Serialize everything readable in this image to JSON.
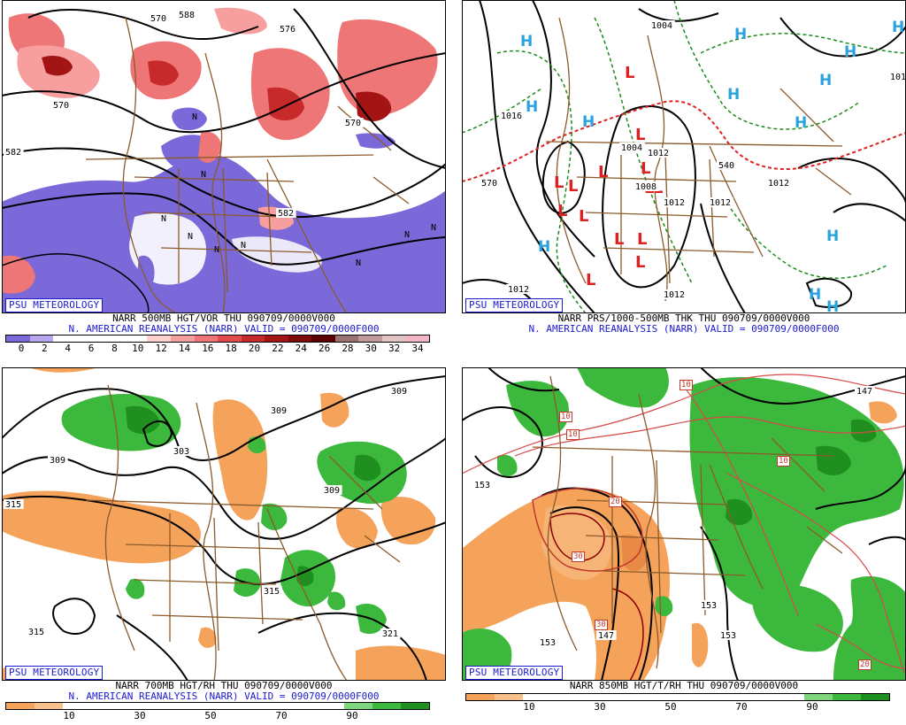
{
  "badge_text": "PSU METEOROLOGY",
  "panels": [
    {
      "id": "p500",
      "header_line": "NARR 500MB HGT/VOR THU 090709/0000V000",
      "valid_line": "N. AMERICAN REANALYSIS (NARR) VALID = 090709/0000F000",
      "colorbar": {
        "colors": [
          "#7b68d9",
          "#b8a6ee",
          "#ffffff",
          "#ffffff",
          "#ffffff",
          "#ffffff",
          "#ffd2d2",
          "#f79e9e",
          "#ef7676",
          "#e24b4b",
          "#c62a2a",
          "#a31515",
          "#7e0a0a",
          "#5a0000",
          "#9a7272",
          "#c09a9a",
          "#e2c4c4",
          "#f2b6c6"
        ],
        "labels": [
          "0",
          "2",
          "4",
          "6",
          "8",
          "10",
          "12",
          "14",
          "16",
          "18",
          "20",
          "22",
          "24",
          "26",
          "28",
          "30",
          "32",
          "34"
        ]
      },
      "contour_labels": [
        "570",
        "582",
        "570",
        "582",
        "588",
        "576",
        "570"
      ]
    },
    {
      "id": "pmslp",
      "header_line": "NARR PRS/1000-500MB THK THU 090709/0000V000",
      "valid_line": "N. AMERICAN REANALYSIS (NARR) VALID = 090709/0000F000",
      "high_symbol": "H",
      "low_symbol": "L",
      "contour_labels": [
        "1004",
        "1012",
        "1012",
        "1012",
        "1012",
        "1016",
        "1004",
        "1008",
        "1012",
        "570",
        "540",
        "1012",
        "1012"
      ]
    },
    {
      "id": "p700",
      "header_line": "NARR 700MB HGT/RH THU 090709/0000V000",
      "valid_line": "N. AMERICAN REANALYSIS (NARR) VALID = 090709/0000F000",
      "colorbar": {
        "colors": [
          "#f5a25a",
          "#f8c08a",
          "#ffffff",
          "#ffffff",
          "#ffffff",
          "#ffffff",
          "#ffffff",
          "#ffffff",
          "#ffffff",
          "#ffffff",
          "#ffffff",
          "#ffffff",
          "#7ed67e",
          "#3cb83c",
          "#1f8f1f"
        ],
        "labels": [
          "10",
          "30",
          "50",
          "70",
          "90"
        ]
      },
      "contour_labels": [
        "309",
        "303",
        "309",
        "315",
        "309",
        "315",
        "315",
        "321",
        "309"
      ]
    },
    {
      "id": "p850",
      "header_line": "NARR 850MB HGT/T/RH THU 090709/0000V000",
      "valid_line": "",
      "colorbar": {
        "colors": [
          "#f5a25a",
          "#f8c08a",
          "#ffffff",
          "#ffffff",
          "#ffffff",
          "#ffffff",
          "#ffffff",
          "#ffffff",
          "#ffffff",
          "#ffffff",
          "#ffffff",
          "#ffffff",
          "#7ed67e",
          "#3cb83c",
          "#1f8f1f"
        ],
        "labels": [
          "10",
          "30",
          "50",
          "70",
          "90"
        ]
      },
      "contour_labels": [
        "153",
        "153",
        "153",
        "153",
        "147",
        "147"
      ],
      "temp_labels": [
        "10",
        "10",
        "10",
        "10",
        "20",
        "30",
        "30",
        "20"
      ]
    }
  ],
  "colors": {
    "vort_neg": "#7b68d9",
    "vort_pos": "#e24b4b",
    "vort_strong": "#a31515",
    "rh_dry": "#f5a25a",
    "rh_moist": "#3cb83c",
    "rh_very_moist": "#1f8f1f",
    "high": "#29a3e0",
    "low": "#e02020",
    "borders": "#8b5a2b",
    "thickness_cold": "#1a8c1a",
    "thickness_warm": "#e02020",
    "badge": "#1a1ad0"
  }
}
